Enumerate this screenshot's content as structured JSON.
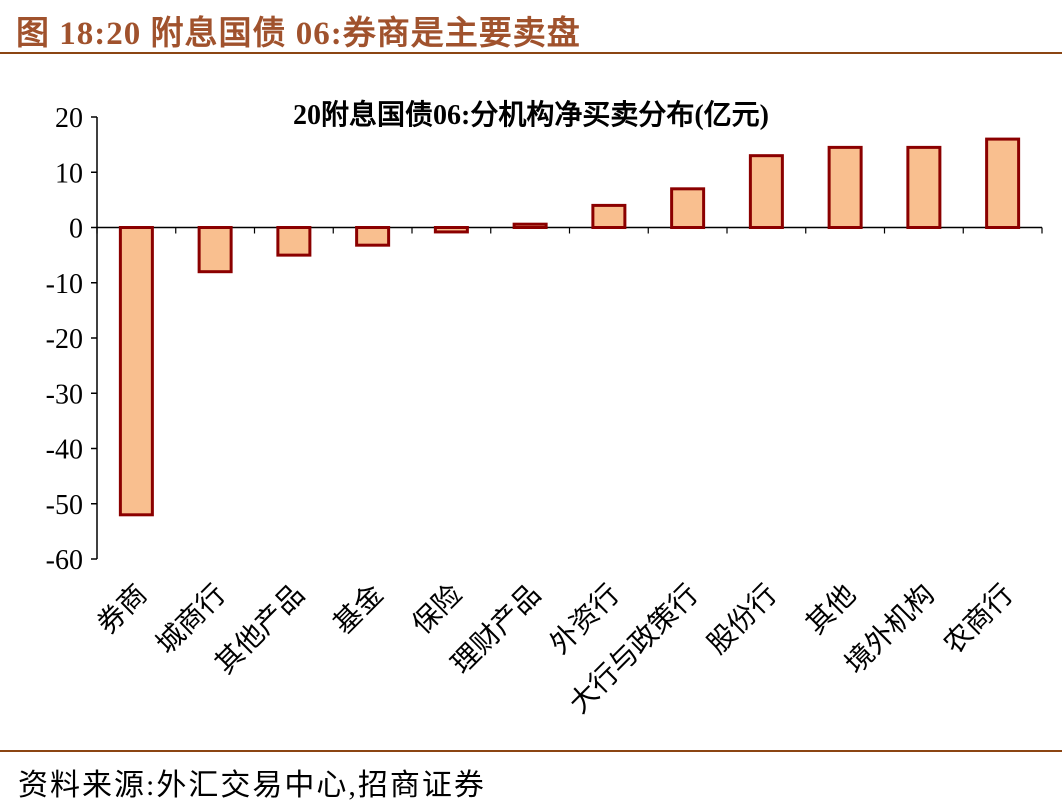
{
  "figure": {
    "title": "图 18:20 附息国债 06:券商是主要卖盘",
    "source": "资料来源:外汇交易中心,招商证券"
  },
  "colors": {
    "bar_fill": "#F9BF8F",
    "bar_stroke": "#8B0000",
    "header_text": "#A0522D",
    "rule": "#8B4513"
  },
  "chart_data": {
    "type": "bar",
    "title": "20附息国债06:分机构净买卖分布(亿元)",
    "xlabel": "",
    "ylabel": "",
    "categories": [
      "券商",
      "城商行",
      "其他产品",
      "基金",
      "保险",
      "理财产品",
      "外资行",
      "大行与政策行",
      "股份行",
      "其他",
      "境外机构",
      "农商行"
    ],
    "values": [
      -52,
      -8,
      -5,
      -3.2,
      -0.8,
      0.6,
      4,
      7,
      13,
      14.5,
      14.5,
      16
    ],
    "ylim": [
      -60,
      20
    ],
    "yticks": [
      20,
      10,
      0,
      -10,
      -20,
      -30,
      -40,
      -50,
      -60
    ],
    "grid": false,
    "legend": "none"
  }
}
